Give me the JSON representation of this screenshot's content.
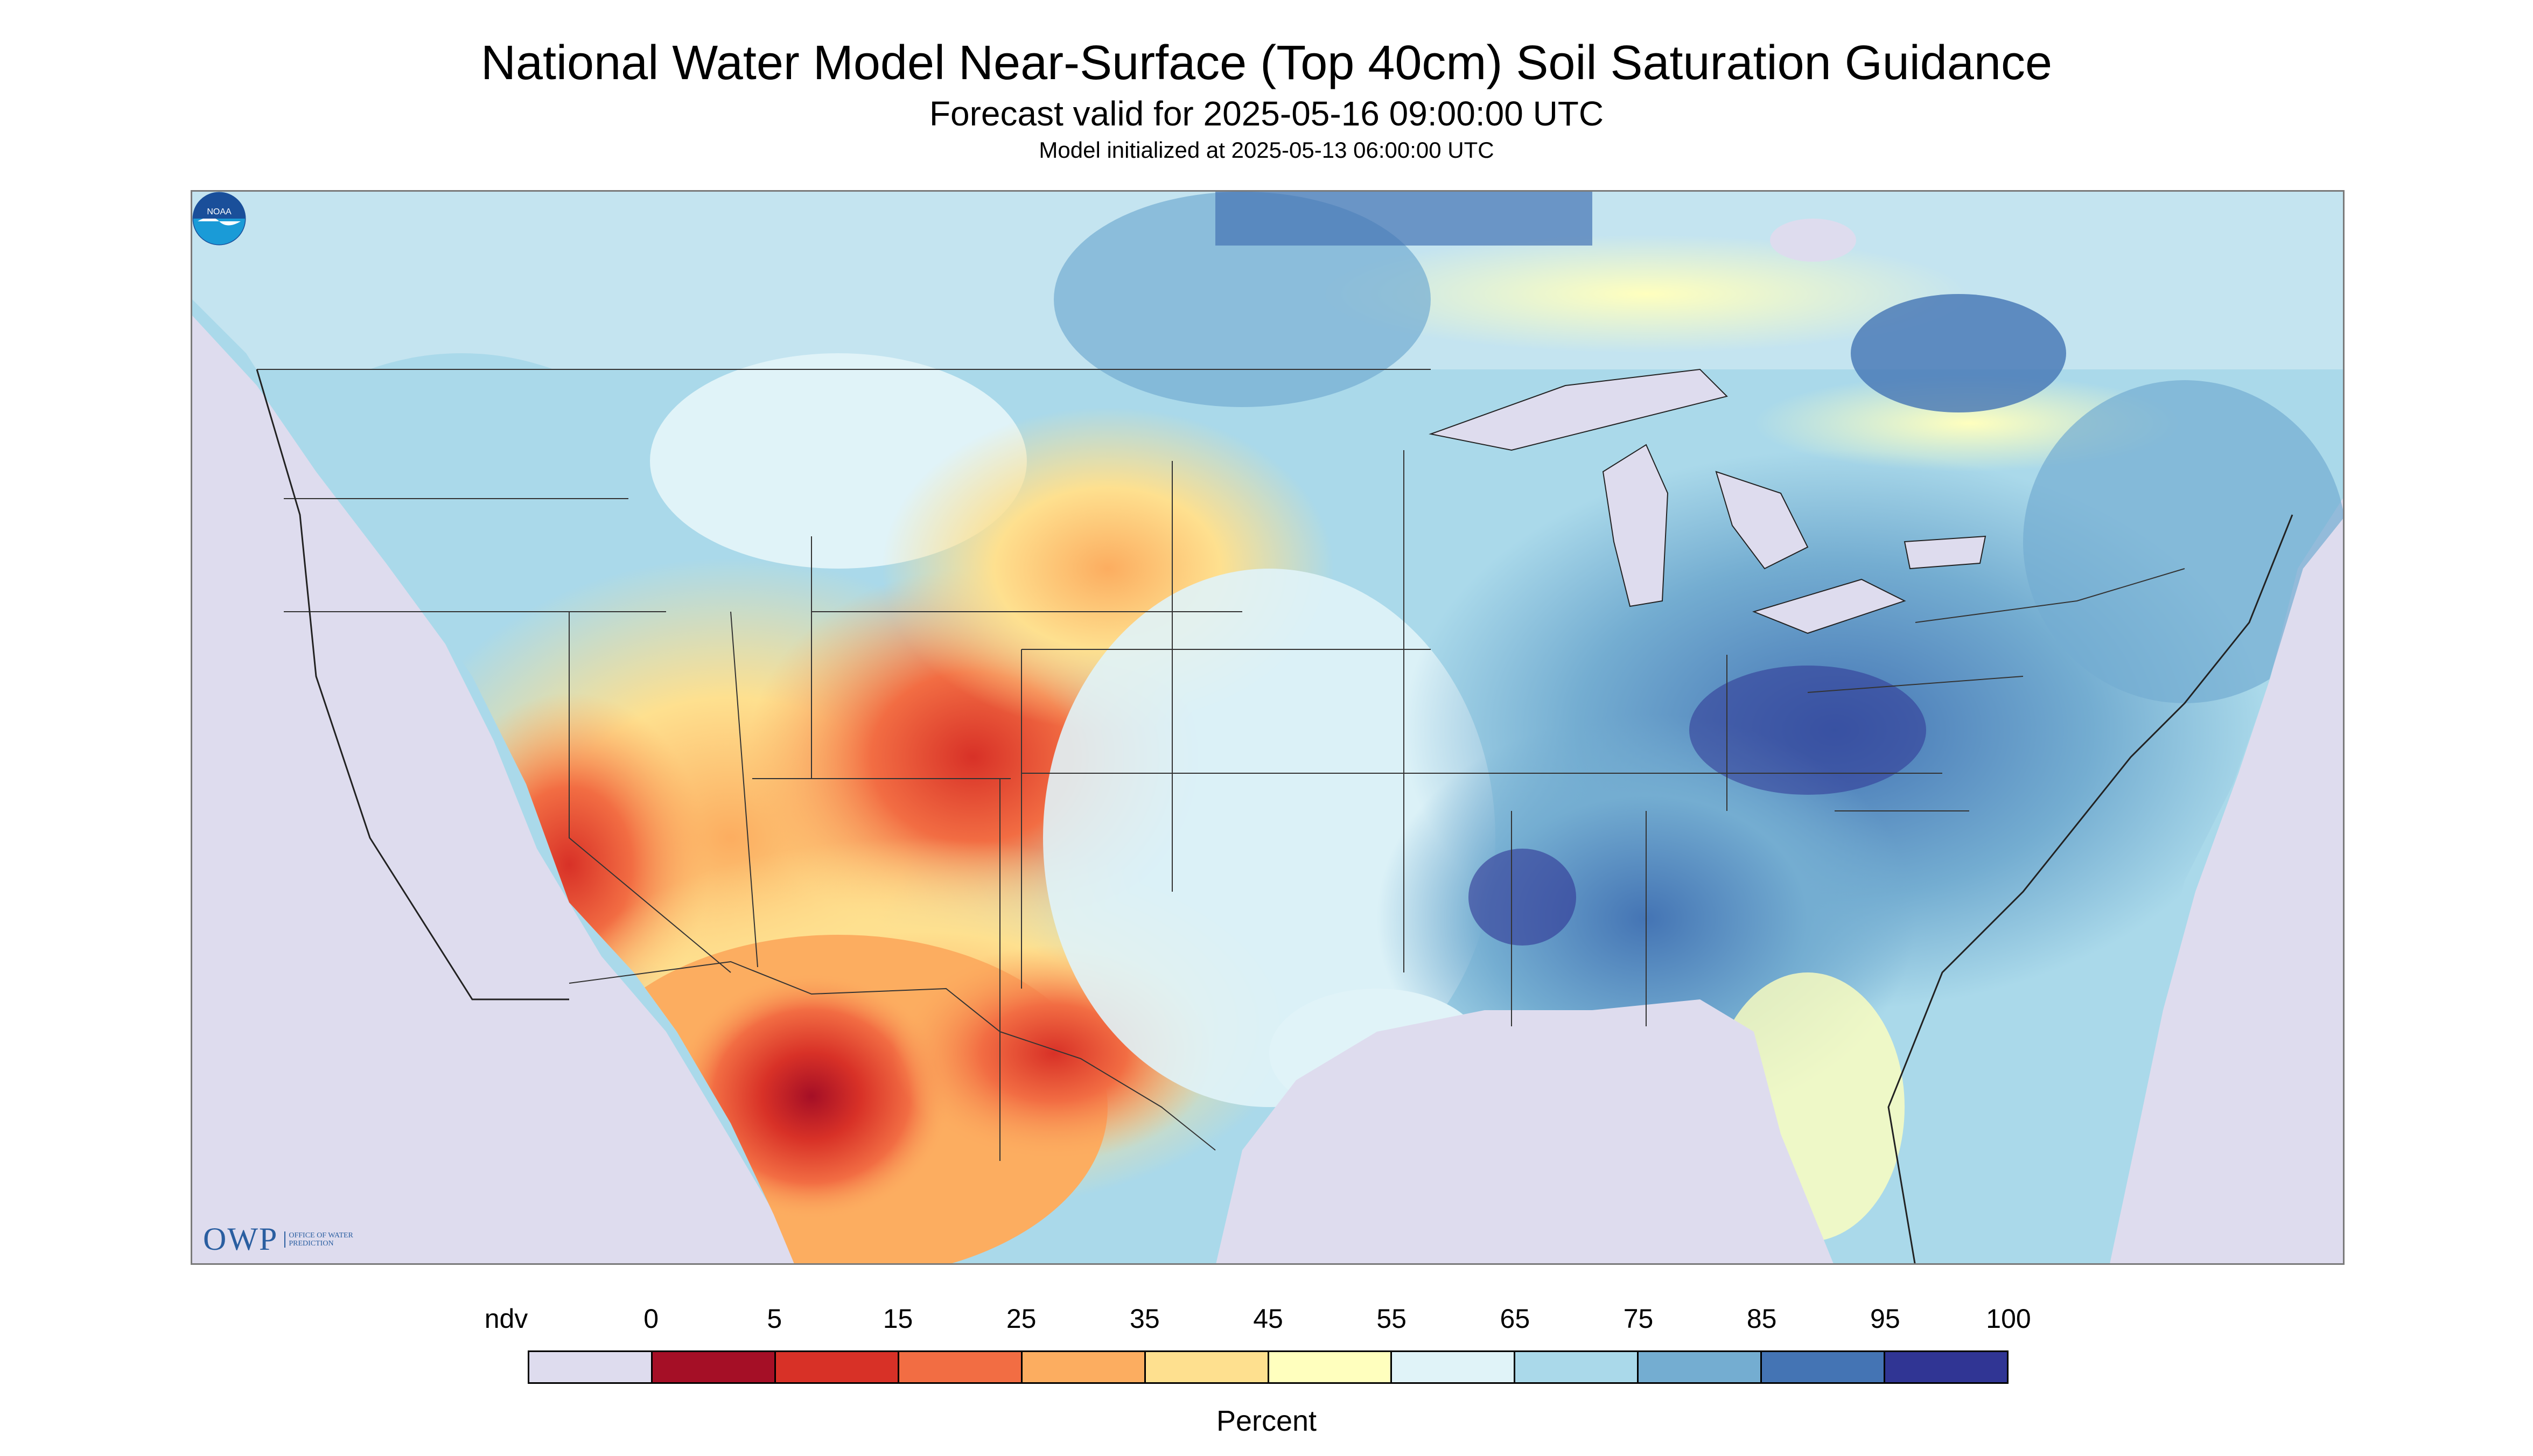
{
  "title": "National Water Model Near-Surface (Top 40cm) Soil Saturation Guidance",
  "subtitle": "Forecast valid for 2025-05-16 09:00:00 UTC",
  "init_line": "Model initialized at 2025-05-13 06:00:00 UTC",
  "logos": {
    "owp_text": "OWP",
    "owp_subtext": "OFFICE OF WATER PREDICTION",
    "noaa_text": "NOAA"
  },
  "legend": {
    "unit": "Percent",
    "labels": [
      "ndv",
      "0",
      "5",
      "15",
      "25",
      "35",
      "45",
      "55",
      "65",
      "75",
      "85",
      "95",
      "100"
    ],
    "colors": [
      "#dedcee",
      "#a50f26",
      "#d83127",
      "#f26d43",
      "#fcad60",
      "#fee08f",
      "#ffffbe",
      "#e0f3f8",
      "#aad9ea",
      "#74add1",
      "#4474b4",
      "#303594"
    ]
  },
  "map_colors": {
    "no_data": "#dedcee",
    "water": "#dedcee",
    "boundary": "#333333"
  }
}
